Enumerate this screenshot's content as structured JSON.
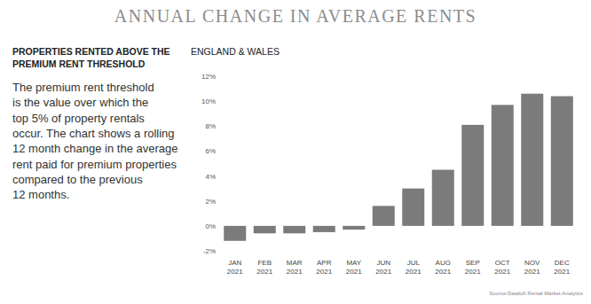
{
  "chart_data": {
    "type": "bar",
    "title": "ANNUAL CHANGE IN AVERAGE RENTS",
    "subtitle": "ENGLAND & WALES",
    "source": "Source:Dataloft Rental Market Analytics",
    "categories": [
      "JAN 2021",
      "FEB 2021",
      "MAR 2021",
      "APR 2021",
      "MAY 2021",
      "JUN 2021",
      "JUL 2021",
      "AUG 2021",
      "SEP 2021",
      "OCT 2021",
      "NOV 2021",
      "DEC 2021"
    ],
    "values": [
      -1.2,
      -0.6,
      -0.6,
      -0.5,
      -0.3,
      1.6,
      3.0,
      4.5,
      8.1,
      9.7,
      10.6,
      10.4
    ],
    "color": "#7b7b7b",
    "ylim": [
      -2,
      12
    ],
    "yticks": [
      {
        "value": -2,
        "label": "-2%"
      },
      {
        "value": 0,
        "label": "0%"
      },
      {
        "value": 2,
        "label": "2%"
      },
      {
        "value": 4,
        "label": "4%"
      },
      {
        "value": 6,
        "label": "6%"
      },
      {
        "value": 8,
        "label": "8%"
      },
      {
        "value": 10,
        "label": "10%"
      },
      {
        "value": 12,
        "label": "12%"
      }
    ],
    "grid": false
  },
  "sidebar": {
    "heading": [
      "PROPERTIES RENTED ABOVE THE",
      "PREMIUM RENT THRESHOLD"
    ],
    "body": [
      "The premium rent threshold",
      "is the value over which the",
      "top 5% of property rentals",
      "occur. The chart shows a rolling",
      "12 month change in the average",
      "rent paid for premium properties",
      "compared to the previous",
      "12 months."
    ]
  }
}
